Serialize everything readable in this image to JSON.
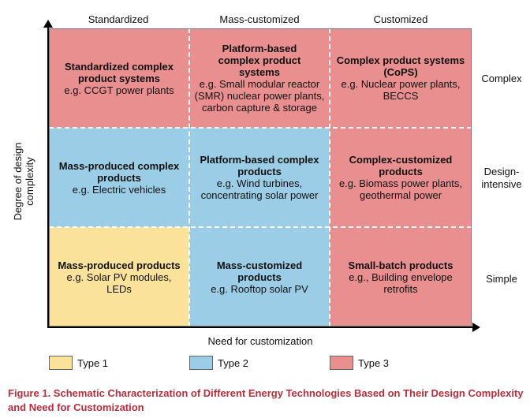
{
  "columns": [
    "Standardized",
    "Mass-customized",
    "Customized"
  ],
  "rows": [
    "Complex",
    "Design-\nintensive",
    "Simple"
  ],
  "y_axis_label": "Degree of design\ncomplexity",
  "x_axis_label": "Need for customization",
  "cells": [
    {
      "title": "Standardized complex product systems",
      "example": "e.g. CCGT power plants",
      "type": 3
    },
    {
      "title": "Platform-based complex product systems",
      "example": "e.g. Small modular reactor (SMR) nuclear power plants, carbon capture & storage",
      "type": 3
    },
    {
      "title": "Complex product systems (CoPS)",
      "example": "e.g. Nuclear power plants, BECCS",
      "type": 3
    },
    {
      "title": "Mass-produced complex products",
      "example": "e.g. Electric vehicles",
      "type": 2
    },
    {
      "title": "Platform-based complex products",
      "example": "e.g. Wind turbines, concentrating solar power",
      "type": 2
    },
    {
      "title": "Complex-customized products",
      "example": "e.g. Biomass power plants, geothermal power",
      "type": 3
    },
    {
      "title": "Mass-produced products",
      "example": "e.g. Solar PV modules, LEDs",
      "type": 1
    },
    {
      "title": "Mass-customized products",
      "example": "e.g. Rooftop solar PV",
      "type": 2
    },
    {
      "title": "Small-batch products",
      "example": "e.g., Building envelope retrofits",
      "type": 3
    }
  ],
  "legend": [
    {
      "label": "Type 1",
      "color": "#fbe29a"
    },
    {
      "label": "Type 2",
      "color": "#9ccde6"
    },
    {
      "label": "Type 3",
      "color": "#ea8f8f"
    }
  ],
  "caption": "Figure 1.  Schematic Characterization of Different Energy Technologies Based on Their Design Complexity and Need for Customization"
}
